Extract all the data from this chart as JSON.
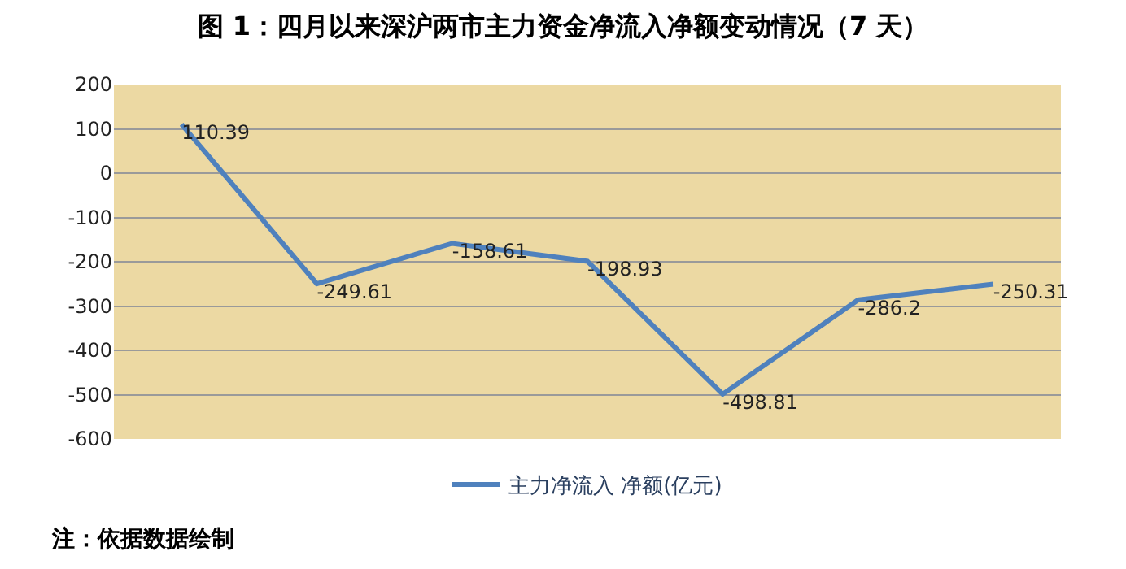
{
  "chart_data": {
    "type": "line",
    "title": "图 1：四月以来深沪两市主力资金净流入净额变动情况（7 天）",
    "categories": [
      null,
      null,
      null,
      null,
      null,
      null,
      null
    ],
    "tick_labels": "y",
    "series": [
      {
        "name": "主力净流入 净额(亿元)",
        "color": "#4f81bd",
        "values": [
          110.39,
          -249.61,
          -158.61,
          -198.93,
          -498.81,
          -286.2,
          -250.31
        ]
      }
    ],
    "ylim": [
      -600,
      200
    ],
    "yticks": [
      -600,
      -500,
      -400,
      -300,
      -200,
      -100,
      0,
      100,
      200
    ],
    "grid": "y",
    "legend": "bottom",
    "data_labels": true,
    "marker": "none",
    "line_style": "solid",
    "annotations": [
      "注：依据数据绘制"
    ]
  }
}
